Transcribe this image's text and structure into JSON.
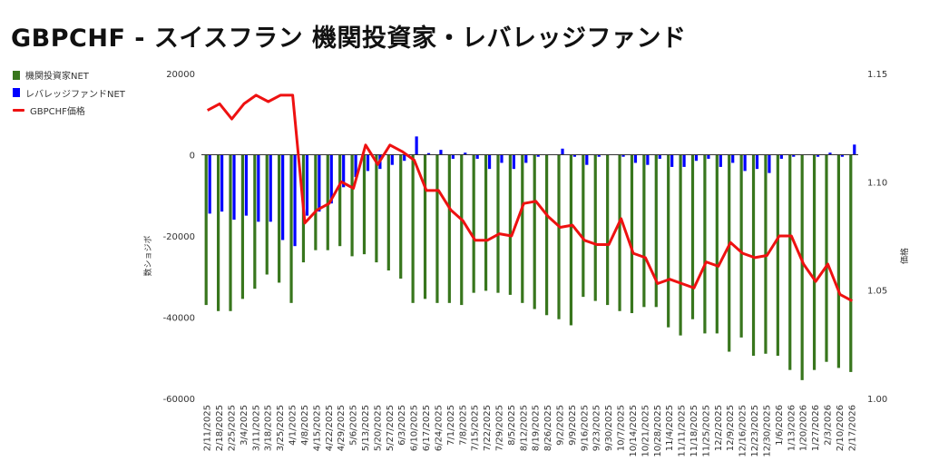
{
  "chart_data": {
    "type": "bar",
    "title": "GBPCHF - スイスフラン 機関投資家・レバレッジファンド",
    "ylabel": "数ショジボ",
    "ylabel_right": "価格",
    "ylim": [
      -60000,
      20000
    ],
    "ylim_right": [
      1.0,
      1.15
    ],
    "yticks": [
      "20000",
      "0",
      "-20000",
      "-40000",
      "-60000"
    ],
    "yticks_right": [
      "1.15",
      "1.10",
      "1.05",
      "1.00"
    ],
    "legend_position": "left",
    "grid": false,
    "categories": [
      "2/11/2025",
      "2/18/2025",
      "2/25/2025",
      "3/4/2025",
      "3/11/2025",
      "3/18/2025",
      "3/25/2025",
      "4/1/2025",
      "4/8/2025",
      "4/15/2025",
      "4/22/2025",
      "4/29/2025",
      "5/6/2025",
      "5/13/2025",
      "5/20/2025",
      "5/27/2025",
      "6/3/2025",
      "6/10/2025",
      "6/17/2025",
      "6/24/2025",
      "7/1/2025",
      "7/8/2025",
      "7/15/2025",
      "7/22/2025",
      "7/29/2025",
      "8/5/2025",
      "8/12/2025",
      "8/19/2025",
      "8/26/2025",
      "9/2/2025",
      "9/9/2025",
      "9/16/2025",
      "9/23/2025",
      "9/30/2025",
      "10/7/2025",
      "10/14/2025",
      "10/21/2025",
      "10/28/2025",
      "11/4/2025",
      "11/11/2025",
      "11/18/2025",
      "11/25/2025",
      "12/2/2025",
      "12/9/2025",
      "12/16/2025",
      "12/23/2025",
      "12/30/2025",
      "1/6/2026",
      "1/13/2026",
      "1/20/2026",
      "1/27/2026",
      "2/3/2026",
      "2/10/2026",
      "2/17/2026"
    ],
    "series": [
      {
        "name": "機関投資家NET",
        "kind": "bar",
        "axis": "left",
        "color": "#38761d",
        "values": [
          -37000,
          -38500,
          -38500,
          -35500,
          -33000,
          -29500,
          -31500,
          -36500,
          -26500,
          -23500,
          -23500,
          -22500,
          -25000,
          -24500,
          -26500,
          -28500,
          -30500,
          -36500,
          -35500,
          -36500,
          -36500,
          -37000,
          -34000,
          -33500,
          -34000,
          -34500,
          -36500,
          -38000,
          -39500,
          -40500,
          -42000,
          -35000,
          -36000,
          -37000,
          -38500,
          -39000,
          -37500,
          -37500,
          -42500,
          -44500,
          -40500,
          -44000,
          -44000,
          -48500,
          -45000,
          -49500,
          -49000,
          -49500,
          -53000,
          -55500,
          -53000,
          -51000,
          -52500,
          -53500
        ]
      },
      {
        "name": "レバレッジファンドNET",
        "kind": "bar",
        "axis": "left",
        "color": "#0000ff",
        "values": [
          -14500,
          -14000,
          -16000,
          -15000,
          -16500,
          -16500,
          -21000,
          -22500,
          -15000,
          -14000,
          -12000,
          -8000,
          -5500,
          -4000,
          -3500,
          -2500,
          -1500,
          4500,
          400,
          1200,
          -1000,
          500,
          -1000,
          -3500,
          -2000,
          -3500,
          -2000,
          -500,
          0,
          1500,
          -500,
          -2500,
          -500,
          0,
          -500,
          -2000,
          -2500,
          -1000,
          -3000,
          -3000,
          -1500,
          -1000,
          -3000,
          -2000,
          -4000,
          -3500,
          -4500,
          -1000,
          -500,
          0,
          -500,
          500,
          -500,
          2500
        ]
      },
      {
        "name": "GBPCHF価格",
        "kind": "line",
        "axis": "right",
        "color": "#ee1111",
        "values": [
          1.133,
          1.136,
          1.129,
          1.136,
          1.14,
          1.137,
          1.14,
          1.14,
          1.081,
          1.087,
          1.09,
          1.1,
          1.097,
          1.117,
          1.108,
          1.117,
          1.114,
          1.11,
          1.096,
          1.096,
          1.087,
          1.082,
          1.073,
          1.073,
          1.076,
          1.075,
          1.09,
          1.091,
          1.084,
          1.079,
          1.08,
          1.073,
          1.071,
          1.071,
          1.083,
          1.067,
          1.065,
          1.053,
          1.055,
          1.053,
          1.051,
          1.063,
          1.061,
          1.072,
          1.067,
          1.065,
          1.066,
          1.075,
          1.075,
          1.062,
          1.054,
          1.062,
          1.048,
          1.045
        ]
      }
    ]
  }
}
